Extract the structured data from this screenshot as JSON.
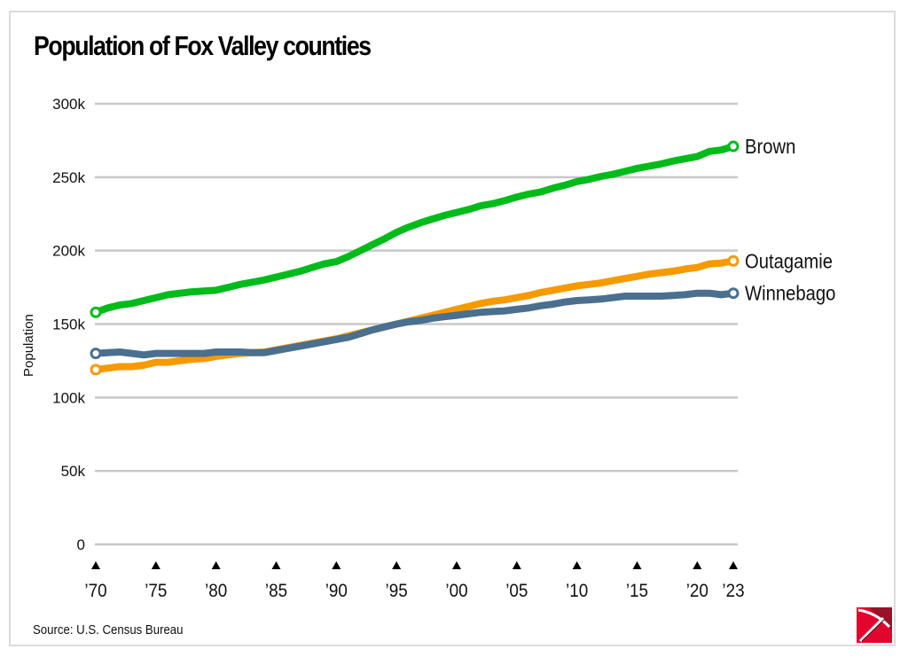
{
  "chart_data": {
    "type": "line",
    "title": "Population of Fox Valley counties",
    "xlabel": "",
    "ylabel": "Population",
    "ylim": [
      0,
      300000
    ],
    "xlim": [
      1970,
      2023
    ],
    "grid": true,
    "y_ticks": [
      0,
      50000,
      100000,
      150000,
      200000,
      250000,
      300000
    ],
    "y_tick_labels": [
      "0",
      "50k",
      "100k",
      "150k",
      "200k",
      "250k",
      "300k"
    ],
    "x_ticks": [
      1970,
      1975,
      1980,
      1985,
      1990,
      1995,
      2000,
      2005,
      2010,
      2015,
      2020,
      2023
    ],
    "x_tick_labels": [
      "’70",
      "’75",
      "’80",
      "’85",
      "’90",
      "’95",
      "’00",
      "’05",
      "’10",
      "’15",
      "’20",
      "’23"
    ],
    "legend": "direct labels at line ends (right)",
    "series": [
      {
        "name": "Brown",
        "color": "#00bb1a",
        "x": [
          1970,
          1971,
          1972,
          1973,
          1974,
          1975,
          1976,
          1977,
          1978,
          1979,
          1980,
          1981,
          1982,
          1983,
          1984,
          1985,
          1986,
          1987,
          1988,
          1989,
          1990,
          1991,
          1992,
          1993,
          1994,
          1995,
          1996,
          1997,
          1998,
          1999,
          2000,
          2001,
          2002,
          2003,
          2004,
          2005,
          2006,
          2007,
          2008,
          2009,
          2010,
          2011,
          2012,
          2013,
          2014,
          2015,
          2016,
          2017,
          2018,
          2019,
          2020,
          2021,
          2022,
          2023
        ],
        "values": [
          158000,
          161000,
          163000,
          164000,
          166000,
          168000,
          170000,
          171000,
          172000,
          172500,
          173000,
          175000,
          177000,
          178500,
          180000,
          182000,
          184000,
          186000,
          188500,
          191000,
          192500,
          196000,
          200000,
          204000,
          208000,
          212500,
          216000,
          219000,
          221500,
          224000,
          226000,
          228000,
          230500,
          232000,
          234000,
          236500,
          238500,
          240000,
          242500,
          244500,
          247000,
          248500,
          250500,
          252000,
          254000,
          256000,
          257500,
          259000,
          261000,
          262500,
          264000,
          267500,
          268500,
          271000
        ]
      },
      {
        "name": "Outagamie",
        "color": "#f59a00",
        "x": [
          1970,
          1971,
          1972,
          1973,
          1974,
          1975,
          1976,
          1977,
          1978,
          1979,
          1980,
          1981,
          1982,
          1983,
          1984,
          1985,
          1986,
          1987,
          1988,
          1989,
          1990,
          1991,
          1992,
          1993,
          1994,
          1995,
          1996,
          1997,
          1998,
          1999,
          2000,
          2001,
          2002,
          2003,
          2004,
          2005,
          2006,
          2007,
          2008,
          2009,
          2010,
          2011,
          2012,
          2013,
          2014,
          2015,
          2016,
          2017,
          2018,
          2019,
          2020,
          2021,
          2022,
          2023
        ],
        "values": [
          119000,
          120000,
          121000,
          121000,
          122000,
          124000,
          124000,
          125000,
          126000,
          126500,
          128000,
          129000,
          130000,
          130500,
          131000,
          132500,
          134000,
          135500,
          137000,
          138500,
          140000,
          142000,
          144000,
          146000,
          148000,
          150000,
          152000,
          154000,
          156000,
          158000,
          160000,
          162000,
          164000,
          165500,
          166500,
          168000,
          169500,
          171500,
          173000,
          174500,
          176000,
          177000,
          178000,
          179500,
          181000,
          182500,
          184000,
          185000,
          186000,
          187500,
          188500,
          191000,
          191500,
          193000
        ]
      },
      {
        "name": "Winnebago",
        "color": "#4a6f8f",
        "x": [
          1970,
          1971,
          1972,
          1973,
          1974,
          1975,
          1976,
          1977,
          1978,
          1979,
          1980,
          1981,
          1982,
          1983,
          1984,
          1985,
          1986,
          1987,
          1988,
          1989,
          1990,
          1991,
          1992,
          1993,
          1994,
          1995,
          1996,
          1997,
          1998,
          1999,
          2000,
          2001,
          2002,
          2003,
          2004,
          2005,
          2006,
          2007,
          2008,
          2009,
          2010,
          2011,
          2012,
          2013,
          2014,
          2015,
          2016,
          2017,
          2018,
          2019,
          2020,
          2021,
          2022,
          2023
        ],
        "values": [
          130000,
          130500,
          131000,
          130000,
          129000,
          130000,
          130000,
          130000,
          130000,
          130000,
          131000,
          131000,
          131000,
          130500,
          130500,
          132000,
          133500,
          135000,
          136500,
          138000,
          139500,
          141000,
          143500,
          146000,
          148000,
          150000,
          151500,
          152500,
          154000,
          155000,
          156000,
          157000,
          158000,
          158500,
          159000,
          160000,
          161000,
          162500,
          163500,
          165000,
          166000,
          166500,
          167000,
          168000,
          169000,
          169000,
          169000,
          169000,
          169500,
          170000,
          171000,
          171000,
          170000,
          171000
        ]
      }
    ]
  },
  "footer": {
    "source": "Source: U.S. Census Bureau"
  },
  "logo": {
    "name": "pickaxe-logo",
    "colors": [
      "#e2062f",
      "#9b1228"
    ]
  }
}
